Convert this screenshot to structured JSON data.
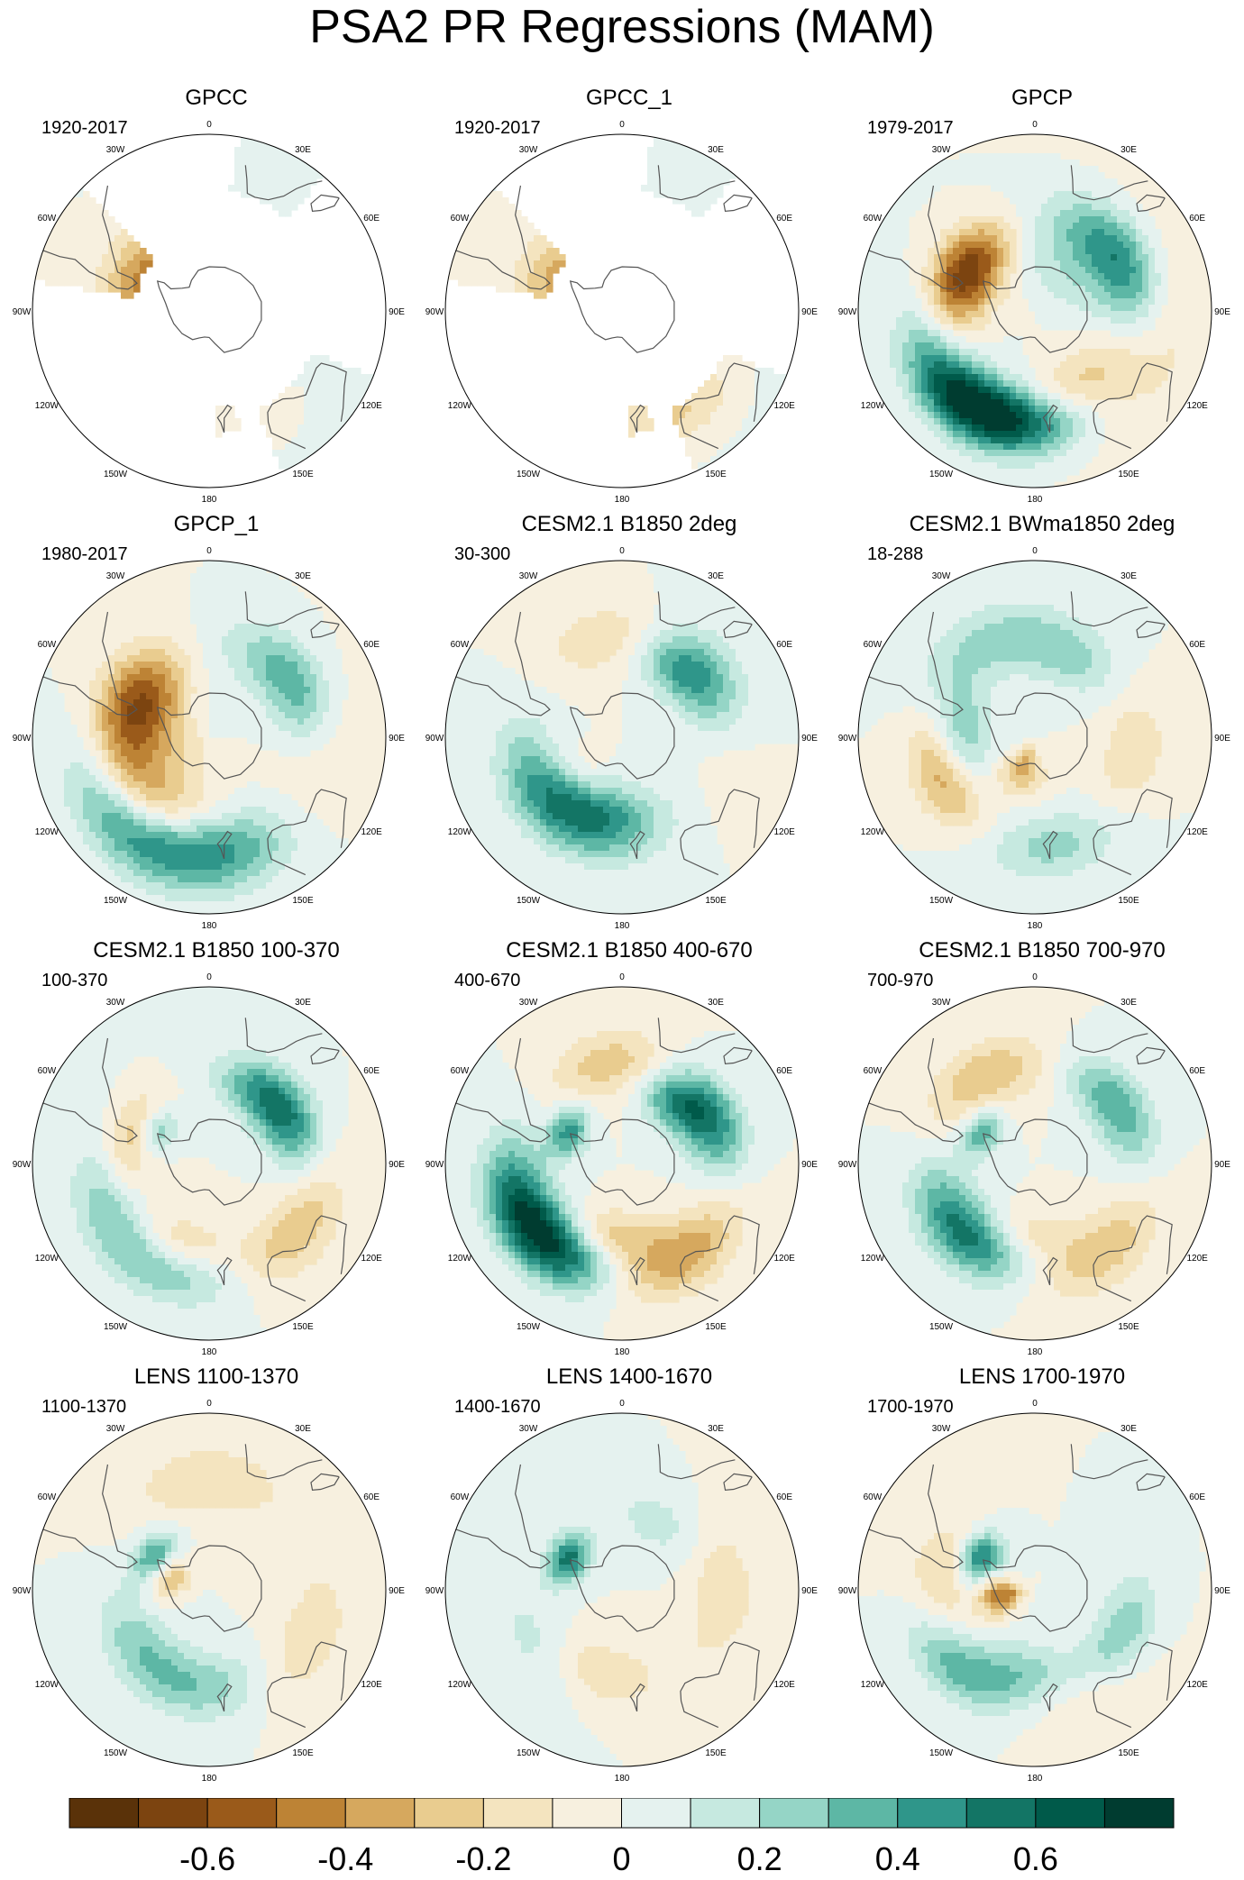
{
  "title": "PSA2 PR Regressions (MAM)",
  "longitude_labels": [
    "0",
    "30E",
    "60E",
    "90E",
    "120E",
    "150E",
    "180",
    "150W",
    "120W",
    "90W",
    "60W",
    "30W"
  ],
  "panels": [
    {
      "title": "GPCC",
      "period": "1920-2017",
      "coverage": "land",
      "field": [
        [
          -0.45,
          -58,
          300,
          0.6
        ],
        [
          0.15,
          -50,
          35,
          0.7
        ],
        [
          0.1,
          -40,
          130,
          0.7
        ],
        [
          -0.15,
          -38,
          155,
          0.5
        ]
      ]
    },
    {
      "title": "GPCC_1",
      "period": "1920-2017",
      "coverage": "land",
      "field": [
        [
          -0.35,
          -58,
          300,
          0.6
        ],
        [
          0.1,
          -50,
          35,
          0.7
        ],
        [
          0.1,
          -40,
          130,
          0.7
        ],
        [
          -0.3,
          -38,
          150,
          0.5
        ]
      ]
    },
    {
      "title": "GPCP",
      "period": "1979-2017",
      "coverage": "full",
      "field": [
        [
          -0.7,
          -55,
          300,
          0.5
        ],
        [
          0.45,
          -40,
          190,
          0.5
        ],
        [
          0.35,
          -40,
          210,
          0.5
        ],
        [
          0.45,
          -45,
          60,
          0.5
        ],
        [
          -0.25,
          -50,
          150,
          0.5
        ],
        [
          0.3,
          -38,
          230,
          0.5
        ],
        [
          0.2,
          -60,
          40,
          0.8
        ],
        [
          -0.15,
          -35,
          100,
          0.8
        ]
      ]
    },
    {
      "title": "GPCP_1",
      "period": "1980-2017",
      "coverage": "full",
      "field": [
        [
          -0.75,
          -55,
          305,
          0.6
        ],
        [
          0.75,
          -40,
          188,
          0.6
        ],
        [
          -0.5,
          -45,
          210,
          0.6
        ],
        [
          0.45,
          -45,
          60,
          0.5
        ],
        [
          0.3,
          -55,
          330,
          0.6
        ],
        [
          -0.2,
          -40,
          100,
          0.6
        ],
        [
          0.35,
          -35,
          230,
          0.5
        ],
        [
          -0.2,
          -65,
          240,
          0.8
        ]
      ]
    },
    {
      "title": "CESM2.1 B1850 2deg",
      "period": "30-300",
      "coverage": "full",
      "field": [
        [
          0.4,
          -50,
          40,
          0.45
        ],
        [
          0.35,
          -40,
          60,
          0.5
        ],
        [
          -0.25,
          -45,
          0,
          0.5
        ],
        [
          0.35,
          -50,
          195,
          0.55
        ],
        [
          0.3,
          -60,
          210,
          0.5
        ],
        [
          -0.25,
          -65,
          220,
          0.45
        ],
        [
          0.3,
          -45,
          240,
          0.5
        ],
        [
          -0.2,
          -40,
          80,
          0.5
        ]
      ]
    },
    {
      "title": "CESM2.1 BWma1850 2deg",
      "period": "18-288",
      "coverage": "full",
      "field": [
        [
          -0.45,
          -45,
          248,
          0.45
        ],
        [
          0.35,
          -55,
          270,
          0.5
        ],
        [
          -0.35,
          -75,
          200,
          0.4
        ],
        [
          0.25,
          -50,
          20,
          0.5
        ],
        [
          0.25,
          -40,
          170,
          0.5
        ],
        [
          -0.2,
          -45,
          100,
          0.5
        ],
        [
          0.2,
          -40,
          330,
          0.5
        ]
      ]
    },
    {
      "title": "CESM2.1 B1850 100-370",
      "period": "100-370",
      "coverage": "full",
      "field": [
        [
          0.3,
          -50,
          40,
          0.45
        ],
        [
          0.35,
          -50,
          60,
          0.45
        ],
        [
          -0.3,
          -50,
          200,
          0.45
        ],
        [
          0.3,
          -40,
          195,
          0.5
        ],
        [
          -0.35,
          -55,
          290,
          0.4
        ],
        [
          0.4,
          -62,
          300,
          0.3
        ],
        [
          -0.3,
          -40,
          130,
          0.5
        ],
        [
          0.25,
          -40,
          240,
          0.5
        ]
      ]
    },
    {
      "title": "CESM2.1 B1850 400-670",
      "period": "400-670",
      "coverage": "full",
      "field": [
        [
          0.5,
          -45,
          60,
          0.45
        ],
        [
          0.35,
          -55,
          40,
          0.4
        ],
        [
          0.6,
          -40,
          240,
          0.5
        ],
        [
          0.4,
          -45,
          210,
          0.5
        ],
        [
          -0.35,
          -55,
          190,
          0.45
        ],
        [
          -0.4,
          -40,
          150,
          0.5
        ],
        [
          -0.3,
          -45,
          0,
          0.5
        ],
        [
          0.45,
          -62,
          300,
          0.3
        ]
      ]
    },
    {
      "title": "CESM2.1 B1850 700-970",
      "period": "700-970",
      "coverage": "full",
      "field": [
        [
          0.4,
          -45,
          55,
          0.45
        ],
        [
          0.45,
          -45,
          230,
          0.5
        ],
        [
          0.3,
          -50,
          200,
          0.5
        ],
        [
          -0.35,
          -55,
          190,
          0.45
        ],
        [
          -0.3,
          -45,
          330,
          0.5
        ],
        [
          -0.3,
          -40,
          145,
          0.5
        ],
        [
          0.4,
          -62,
          300,
          0.3
        ]
      ]
    },
    {
      "title": "LENS 1100-1370",
      "period": "1100-1370",
      "coverage": "full",
      "field": [
        [
          0.55,
          -62,
          300,
          0.3
        ],
        [
          -0.4,
          -70,
          290,
          0.35
        ],
        [
          0.25,
          -50,
          230,
          0.5
        ],
        [
          0.25,
          -45,
          180,
          0.5
        ],
        [
          -0.2,
          -40,
          120,
          0.5
        ],
        [
          -0.2,
          -40,
          0,
          0.5
        ]
      ]
    },
    {
      "title": "LENS 1400-1670",
      "period": "1400-1670",
      "coverage": "full",
      "field": [
        [
          0.55,
          -62,
          300,
          0.3
        ],
        [
          -0.25,
          -50,
          200,
          0.5
        ],
        [
          0.2,
          -45,
          230,
          0.5
        ],
        [
          -0.2,
          -45,
          90,
          0.5
        ],
        [
          0.15,
          -55,
          30,
          0.5
        ]
      ]
    },
    {
      "title": "LENS 1700-1970",
      "period": "1700-1970",
      "coverage": "full",
      "field": [
        [
          0.55,
          -62,
          300,
          0.3
        ],
        [
          -0.5,
          -75,
          260,
          0.35
        ],
        [
          0.4,
          -40,
          235,
          0.45
        ],
        [
          0.3,
          -50,
          190,
          0.5
        ],
        [
          -0.3,
          -45,
          265,
          0.5
        ],
        [
          0.35,
          -45,
          120,
          0.45
        ],
        [
          -0.2,
          -40,
          150,
          0.5
        ]
      ]
    }
  ],
  "chart_data": {
    "type": "heatmap",
    "title": "PSA2 PR Regressions (MAM)",
    "projection": "south-polar stereographic, 0 at top, 90E right, 180 bottom",
    "colorbar": {
      "levels": [
        -0.7,
        -0.6,
        -0.5,
        -0.4,
        -0.3,
        -0.2,
        -0.1,
        0,
        0.1,
        0.2,
        0.3,
        0.4,
        0.5,
        0.6,
        0.7
      ],
      "tick_values": [
        -0.6,
        -0.4,
        -0.2,
        0,
        0.2,
        0.4,
        0.6
      ],
      "tick_labels": [
        "-0.6",
        "-0.4",
        "-0.2",
        "0",
        "0.2",
        "0.4",
        "0.6"
      ],
      "colors": [
        "#5a3209",
        "#7c4410",
        "#9a5a1a",
        "#bd8335",
        "#d6a85e",
        "#e9cc8f",
        "#f4e4bf",
        "#f7f0df",
        "#e5f2ef",
        "#c6e9e0",
        "#95d5c6",
        "#5db7a5",
        "#2f968a",
        "#137565",
        "#005a4a",
        "#003c30"
      ]
    },
    "panels": [
      "GPCC",
      "GPCC_1",
      "GPCP",
      "GPCP_1",
      "CESM2.1 B1850 2deg",
      "CESM2.1 BWma1850 2deg",
      "CESM2.1 B1850 100-370",
      "CESM2.1 B1850 400-670",
      "CESM2.1 B1850 700-970",
      "LENS 1100-1370",
      "LENS 1400-1670",
      "LENS 1700-1970"
    ]
  }
}
